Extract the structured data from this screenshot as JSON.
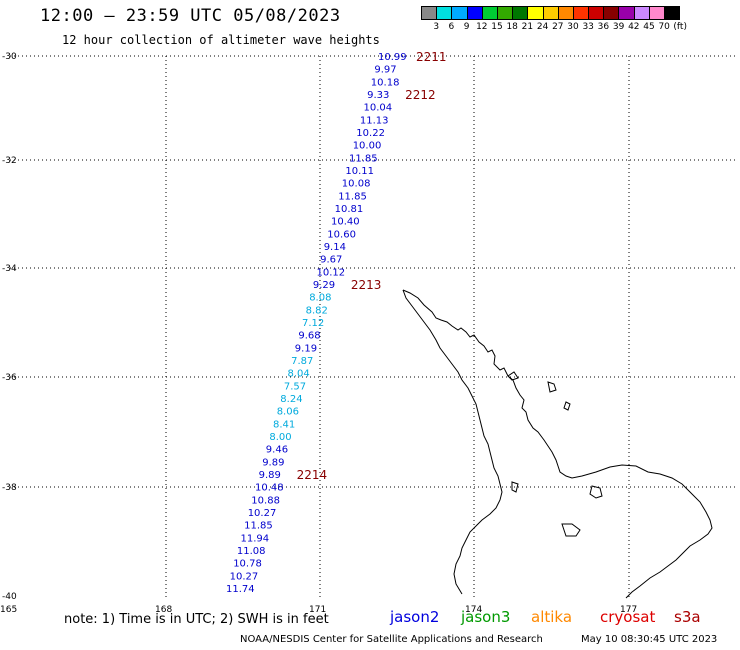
{
  "title": "12:00 – 23:59 UTC 05/08/2023",
  "subtitle": "12 hour collection of altimeter wave heights",
  "color_scale": {
    "unit": "(ft)",
    "labels": [
      "3",
      "6",
      "9",
      "12",
      "15",
      "18",
      "21",
      "24",
      "27",
      "30",
      "33",
      "36",
      "39",
      "42",
      "45",
      "70"
    ],
    "colors": [
      "#888888",
      "#00e0e0",
      "#00aaff",
      "#0000ff",
      "#00cc33",
      "#33aa00",
      "#007700",
      "#ffff00",
      "#ffcc00",
      "#ff8800",
      "#ff3300",
      "#cc0000",
      "#880000",
      "#9900aa",
      "#cc88ff",
      "#ff88cc",
      "#000000"
    ]
  },
  "lat_labels": [
    "-30",
    "-32",
    "-34",
    "-36",
    "-38",
    "-40"
  ],
  "lon_labels": [
    "165",
    "168",
    "171",
    "174",
    "177"
  ],
  "track_color_light": "#00aadd",
  "track_color_dark": "#0000cc",
  "time_label_color": "#880000",
  "track_points": [
    {
      "v": "10.99",
      "c": "dark"
    },
    {
      "v": "9.97",
      "c": "dark"
    },
    {
      "v": "10.18",
      "c": "dark"
    },
    {
      "v": "9.33",
      "c": "dark"
    },
    {
      "v": "10.04",
      "c": "dark"
    },
    {
      "v": "11.13",
      "c": "dark"
    },
    {
      "v": "10.22",
      "c": "dark"
    },
    {
      "v": "10.00",
      "c": "dark"
    },
    {
      "v": "11.85",
      "c": "dark"
    },
    {
      "v": "10.11",
      "c": "dark"
    },
    {
      "v": "10.08",
      "c": "dark"
    },
    {
      "v": "11.85",
      "c": "dark"
    },
    {
      "v": "10.81",
      "c": "dark"
    },
    {
      "v": "10.40",
      "c": "dark"
    },
    {
      "v": "10.60",
      "c": "dark"
    },
    {
      "v": "9.14",
      "c": "dark"
    },
    {
      "v": "9.67",
      "c": "dark"
    },
    {
      "v": "10.12",
      "c": "dark"
    },
    {
      "v": "9.29",
      "c": "dark"
    },
    {
      "v": "8.08",
      "c": "light"
    },
    {
      "v": "8.82",
      "c": "light"
    },
    {
      "v": "7.12",
      "c": "light"
    },
    {
      "v": "9.68",
      "c": "dark"
    },
    {
      "v": "9.19",
      "c": "dark"
    },
    {
      "v": "7.87",
      "c": "light"
    },
    {
      "v": "8.04",
      "c": "light"
    },
    {
      "v": "7.57",
      "c": "light"
    },
    {
      "v": "8.24",
      "c": "light"
    },
    {
      "v": "8.06",
      "c": "light"
    },
    {
      "v": "8.41",
      "c": "light"
    },
    {
      "v": "8.00",
      "c": "light"
    },
    {
      "v": "9.46",
      "c": "dark"
    },
    {
      "v": "9.89",
      "c": "dark"
    },
    {
      "v": "9.89",
      "c": "dark"
    },
    {
      "v": "10.48",
      "c": "dark"
    },
    {
      "v": "10.88",
      "c": "dark"
    },
    {
      "v": "10.27",
      "c": "dark"
    },
    {
      "v": "11.85",
      "c": "dark"
    },
    {
      "v": "11.94",
      "c": "dark"
    },
    {
      "v": "11.08",
      "c": "dark"
    },
    {
      "v": "10.78",
      "c": "dark"
    },
    {
      "v": "10.27",
      "c": "dark"
    },
    {
      "v": "11.74",
      "c": "dark"
    }
  ],
  "time_labels": [
    {
      "text": "2211",
      "index": 0
    },
    {
      "text": "2212",
      "index": 3
    },
    {
      "text": "2213",
      "index": 18
    },
    {
      "text": "2214",
      "index": 33
    }
  ],
  "note": "note: 1) Time is in UTC; 2) SWH is in feet",
  "satellites": [
    {
      "name": "jason2",
      "color": "#0000dd"
    },
    {
      "name": "jason3",
      "color": "#009900"
    },
    {
      "name": "altika",
      "color": "#ff8800"
    },
    {
      "name": "cryosat",
      "color": "#dd0000"
    },
    {
      "name": "s3a",
      "color": "#aa0000"
    }
  ],
  "credit_left": "NOAA/NESDIS Center for Satellite Applications and Research",
  "credit_right": "May 10 08:30:45 UTC 2023"
}
